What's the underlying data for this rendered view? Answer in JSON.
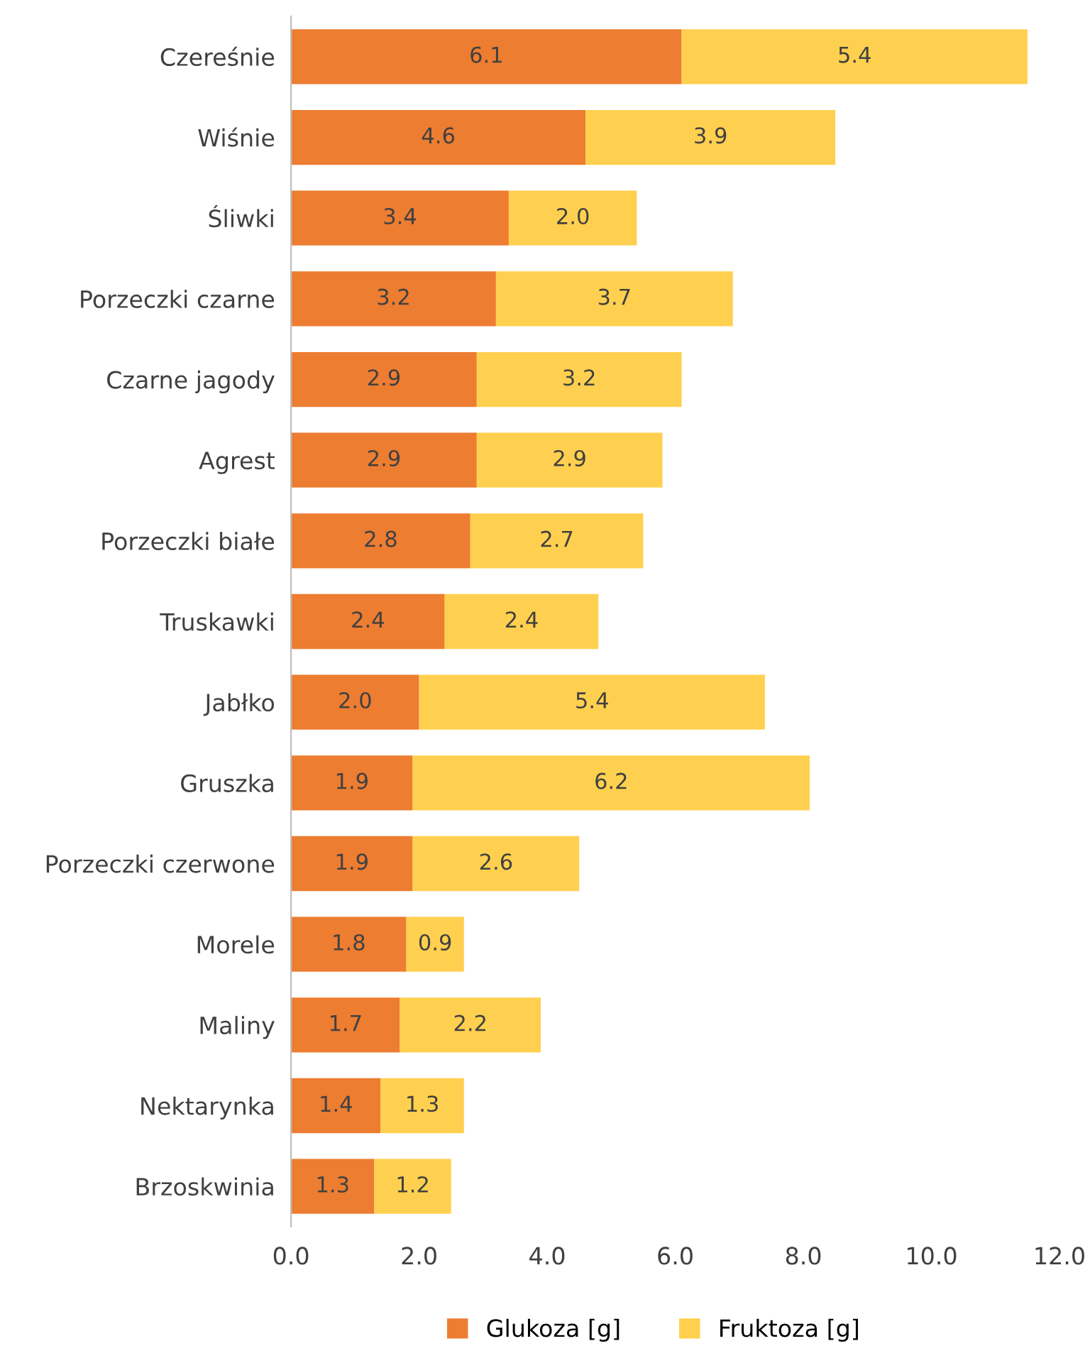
{
  "chart_data": {
    "type": "bar",
    "orientation": "horizontal",
    "stacked": true,
    "categories": [
      "Czereśnie",
      "Wiśnie",
      "Śliwki",
      "Porzeczki czarne",
      "Czarne jagody",
      "Agrest",
      "Porzeczki białe",
      "Truskawki",
      "Jabłko",
      "Gruszka",
      "Porzeczki czerwone",
      "Morele",
      "Maliny",
      "Nektarynka",
      "Brzoskwinia"
    ],
    "series": [
      {
        "name": "Glukoza [g]",
        "color": "#ed7d31",
        "values": [
          6.1,
          4.6,
          3.4,
          3.2,
          2.9,
          2.9,
          2.8,
          2.4,
          2.0,
          1.9,
          1.9,
          1.8,
          1.7,
          1.4,
          1.3
        ],
        "value_labels": [
          "6.1",
          "4.6",
          "3.4",
          "3.2",
          "2.9",
          "2.9",
          "2.8",
          "2.4",
          "2.0",
          "1.9",
          "1.9",
          "1.8",
          "1.7",
          "1.4",
          "1.3"
        ]
      },
      {
        "name": "Fruktoza [g]",
        "color": "#ffd04f",
        "values": [
          5.4,
          3.9,
          2.0,
          3.7,
          3.2,
          2.9,
          2.7,
          2.4,
          5.4,
          6.2,
          2.6,
          0.9,
          2.2,
          1.3,
          1.2
        ],
        "value_labels": [
          "5.4",
          "3.9",
          "2.0",
          "3.7",
          "3.2",
          "2.9",
          "2.7",
          "2.4",
          "5.4",
          "6.2",
          "2.6",
          "0.9",
          "2.2",
          "1.3",
          "1.2"
        ]
      }
    ],
    "xlim": [
      0,
      12
    ],
    "xticks": [
      {
        "value": 0,
        "label": "0.0"
      },
      {
        "value": 2,
        "label": "2.0"
      },
      {
        "value": 4,
        "label": "4.0"
      },
      {
        "value": 6,
        "label": "6.0"
      },
      {
        "value": 8,
        "label": "8.0"
      },
      {
        "value": 10,
        "label": "10.0"
      },
      {
        "value": 12,
        "label": "12.0"
      }
    ],
    "grid": false,
    "legend": "bottom"
  }
}
